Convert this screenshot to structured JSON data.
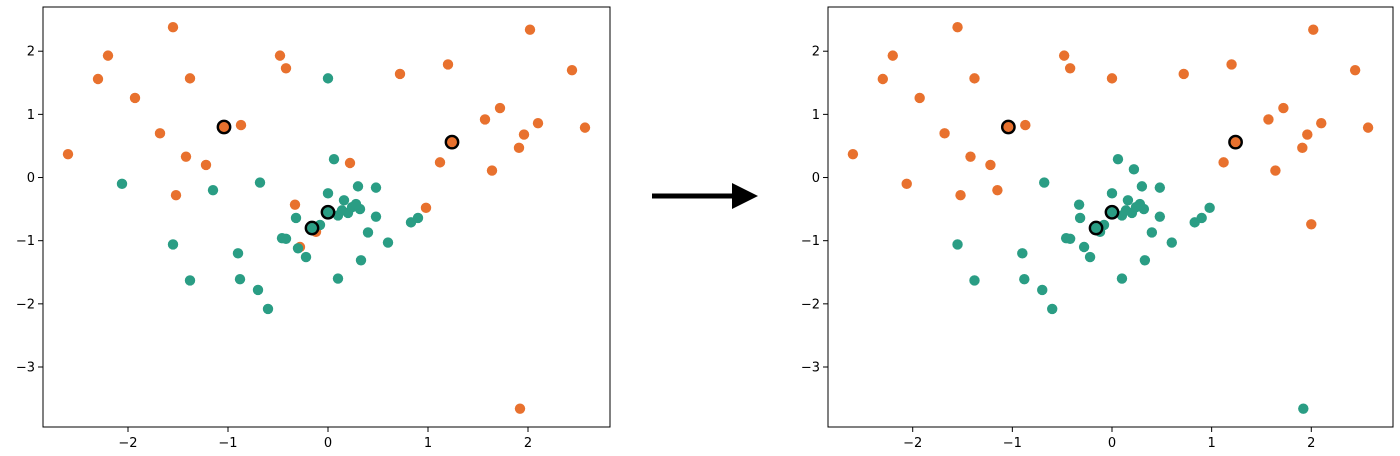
{
  "colors": {
    "orange": "#E8712E",
    "teal": "#2A9D84",
    "highlight": "#000000",
    "arrow": "#000000"
  },
  "arrow": {
    "icon": "right-arrow-icon"
  },
  "chart_data": [
    {
      "type": "scatter",
      "panel": "left",
      "title": "",
      "xlabel": "",
      "ylabel": "",
      "xlim": [
        -2.85,
        2.82
      ],
      "ylim": [
        -3.95,
        2.7
      ],
      "xticks": [
        -2,
        -1,
        0,
        1,
        2
      ],
      "xtick_labels": [
        "−2",
        "−1",
        "0",
        "1",
        "2"
      ],
      "yticks": [
        -3,
        -2,
        -1,
        0,
        1,
        2
      ],
      "ytick_labels": [
        "−3",
        "−2",
        "−1",
        "0",
        "1",
        "2"
      ],
      "grid": false,
      "series": [
        {
          "color": "orange",
          "points": [
            [
              -2.6,
              0.37
            ],
            [
              -2.3,
              1.56
            ],
            [
              -2.2,
              1.93
            ],
            [
              -1.93,
              1.26
            ],
            [
              -1.68,
              0.7
            ],
            [
              -1.55,
              2.38
            ],
            [
              -1.52,
              -0.28
            ],
            [
              -1.42,
              0.33
            ],
            [
              -1.38,
              1.57
            ],
            [
              -1.22,
              0.2
            ],
            [
              -1.04,
              0.8
            ],
            [
              -0.87,
              0.83
            ],
            [
              -0.48,
              1.93
            ],
            [
              -0.42,
              1.73
            ],
            [
              -0.33,
              -0.43
            ],
            [
              -0.28,
              -1.1
            ],
            [
              -0.12,
              -0.86
            ],
            [
              0.22,
              0.23
            ],
            [
              0.72,
              1.64
            ],
            [
              0.98,
              -0.48
            ],
            [
              1.12,
              0.24
            ],
            [
              1.2,
              1.79
            ],
            [
              1.24,
              0.56
            ],
            [
              1.57,
              0.92
            ],
            [
              1.64,
              0.11
            ],
            [
              1.72,
              1.1
            ],
            [
              1.91,
              0.47
            ],
            [
              1.96,
              0.68
            ],
            [
              2.02,
              2.34
            ],
            [
              2.1,
              0.86
            ],
            [
              2.44,
              1.7
            ],
            [
              2.57,
              0.79
            ],
            [
              1.92,
              -3.66
            ]
          ]
        },
        {
          "color": "teal",
          "points": [
            [
              -2.06,
              -0.1
            ],
            [
              -1.55,
              -1.06
            ],
            [
              -1.38,
              -1.63
            ],
            [
              -1.15,
              -0.2
            ],
            [
              -0.9,
              -1.2
            ],
            [
              -0.88,
              -1.61
            ],
            [
              -0.68,
              -0.08
            ],
            [
              -0.7,
              -1.78
            ],
            [
              -0.6,
              -2.08
            ],
            [
              -0.46,
              -0.96
            ],
            [
              -0.42,
              -0.97
            ],
            [
              -0.32,
              -0.64
            ],
            [
              -0.3,
              -1.12
            ],
            [
              -0.22,
              -1.26
            ],
            [
              -0.15,
              -0.82
            ],
            [
              -0.08,
              -0.75
            ],
            [
              0.0,
              1.57
            ],
            [
              0.0,
              -0.25
            ],
            [
              0.02,
              -0.55
            ],
            [
              0.06,
              0.29
            ],
            [
              0.1,
              -0.6
            ],
            [
              0.1,
              -1.6
            ],
            [
              0.14,
              -0.52
            ],
            [
              0.16,
              -0.36
            ],
            [
              0.2,
              -0.56
            ],
            [
              0.24,
              -0.47
            ],
            [
              0.28,
              -0.42
            ],
            [
              0.3,
              -0.14
            ],
            [
              0.32,
              -0.5
            ],
            [
              0.33,
              -1.31
            ],
            [
              0.4,
              -0.87
            ],
            [
              0.48,
              -0.62
            ],
            [
              0.48,
              -0.16
            ],
            [
              0.6,
              -1.03
            ],
            [
              0.83,
              -0.71
            ],
            [
              0.9,
              -0.64
            ]
          ]
        }
      ],
      "highlighted": [
        {
          "point": [
            -1.04,
            0.8
          ],
          "color": "orange"
        },
        {
          "point": [
            1.24,
            0.56
          ],
          "color": "orange"
        },
        {
          "point": [
            0.0,
            -0.55
          ],
          "color": "teal"
        },
        {
          "point": [
            -0.16,
            -0.8
          ],
          "color": "teal"
        }
      ]
    },
    {
      "type": "scatter",
      "panel": "right",
      "title": "",
      "xlabel": "",
      "ylabel": "",
      "xlim": [
        -2.85,
        2.82
      ],
      "ylim": [
        -3.95,
        2.7
      ],
      "xticks": [
        -2,
        -1,
        0,
        1,
        2
      ],
      "xtick_labels": [
        "−2",
        "−1",
        "0",
        "1",
        "2"
      ],
      "yticks": [
        -3,
        -2,
        -1,
        0,
        1,
        2
      ],
      "ytick_labels": [
        "−3",
        "−2",
        "−1",
        "0",
        "1",
        "2"
      ],
      "grid": false,
      "series": [
        {
          "color": "orange",
          "points": [
            [
              -2.6,
              0.37
            ],
            [
              -2.3,
              1.56
            ],
            [
              -2.2,
              1.93
            ],
            [
              -2.06,
              -0.1
            ],
            [
              -1.93,
              1.26
            ],
            [
              -1.68,
              0.7
            ],
            [
              -1.55,
              2.38
            ],
            [
              -1.52,
              -0.28
            ],
            [
              -1.42,
              0.33
            ],
            [
              -1.38,
              1.57
            ],
            [
              -1.22,
              0.2
            ],
            [
              -1.15,
              -0.2
            ],
            [
              -1.04,
              0.8
            ],
            [
              -0.87,
              0.83
            ],
            [
              -0.48,
              1.93
            ],
            [
              -0.42,
              1.73
            ],
            [
              0.0,
              1.57
            ],
            [
              0.72,
              1.64
            ],
            [
              1.12,
              0.24
            ],
            [
              1.2,
              1.79
            ],
            [
              1.24,
              0.56
            ],
            [
              1.57,
              0.92
            ],
            [
              1.64,
              0.11
            ],
            [
              1.72,
              1.1
            ],
            [
              1.91,
              0.47
            ],
            [
              1.96,
              0.68
            ],
            [
              2.02,
              2.34
            ],
            [
              2.0,
              -0.74
            ],
            [
              2.1,
              0.86
            ],
            [
              2.44,
              1.7
            ],
            [
              2.57,
              0.79
            ]
          ]
        },
        {
          "color": "teal",
          "points": [
            [
              -1.55,
              -1.06
            ],
            [
              -1.38,
              -1.63
            ],
            [
              -0.9,
              -1.2
            ],
            [
              -0.88,
              -1.61
            ],
            [
              -0.68,
              -0.08
            ],
            [
              -0.7,
              -1.78
            ],
            [
              -0.6,
              -2.08
            ],
            [
              -0.46,
              -0.96
            ],
            [
              -0.42,
              -0.97
            ],
            [
              -0.33,
              -0.43
            ],
            [
              -0.32,
              -0.64
            ],
            [
              -0.28,
              -1.1
            ],
            [
              -0.22,
              -1.26
            ],
            [
              -0.15,
              -0.82
            ],
            [
              -0.12,
              -0.86
            ],
            [
              -0.08,
              -0.75
            ],
            [
              0.0,
              -0.25
            ],
            [
              0.02,
              -0.55
            ],
            [
              0.06,
              0.29
            ],
            [
              0.1,
              -0.6
            ],
            [
              0.1,
              -1.6
            ],
            [
              0.14,
              -0.52
            ],
            [
              0.16,
              -0.36
            ],
            [
              0.2,
              -0.56
            ],
            [
              0.22,
              0.13
            ],
            [
              0.24,
              -0.47
            ],
            [
              0.28,
              -0.42
            ],
            [
              0.3,
              -0.14
            ],
            [
              0.32,
              -0.5
            ],
            [
              0.33,
              -1.31
            ],
            [
              0.4,
              -0.87
            ],
            [
              0.48,
              -0.62
            ],
            [
              0.48,
              -0.16
            ],
            [
              0.6,
              -1.03
            ],
            [
              0.83,
              -0.71
            ],
            [
              0.9,
              -0.64
            ],
            [
              0.98,
              -0.48
            ],
            [
              1.92,
              -3.66
            ]
          ]
        }
      ],
      "highlighted": [
        {
          "point": [
            -1.04,
            0.8
          ],
          "color": "orange"
        },
        {
          "point": [
            1.24,
            0.56
          ],
          "color": "orange"
        },
        {
          "point": [
            0.0,
            -0.55
          ],
          "color": "teal"
        },
        {
          "point": [
            -0.16,
            -0.8
          ],
          "color": "teal"
        }
      ]
    }
  ]
}
